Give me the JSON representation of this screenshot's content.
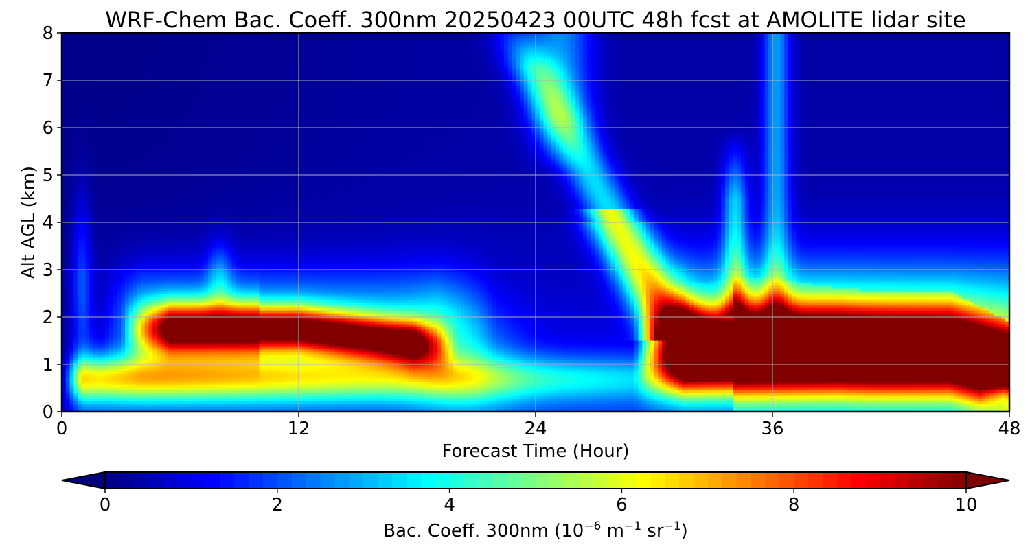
{
  "chart_data": {
    "type": "heatmap",
    "title": "WRF-Chem Bac. Coeff. 300nm  20250423 00UTC 48h fcst at AMOLITE lidar site",
    "xlabel": "Forecast Time (Hour)",
    "ylabel": "Alt AGL (km)",
    "xlim": [
      0,
      48
    ],
    "ylim": [
      0,
      8
    ],
    "xticks": [
      0,
      12,
      24,
      36,
      48
    ],
    "yticks": [
      0,
      1,
      2,
      3,
      4,
      5,
      6,
      7,
      8
    ],
    "grid": true,
    "x_values": [
      0,
      1,
      2,
      3,
      4,
      5,
      6,
      7,
      8,
      9,
      10,
      11,
      12,
      13,
      14,
      15,
      16,
      17,
      18,
      19,
      20,
      21,
      22,
      23,
      24,
      25,
      26,
      27,
      28,
      29,
      30,
      31,
      32,
      33,
      34,
      35,
      36,
      37,
      38,
      39,
      40,
      41,
      42,
      43,
      44,
      45,
      46,
      47,
      48
    ],
    "y_values": [
      0,
      0.25,
      0.5,
      0.75,
      1,
      1.25,
      1.5,
      1.75,
      2,
      2.25,
      2.5,
      2.75,
      3,
      3.5,
      4,
      4.5,
      5,
      6,
      7,
      8
    ],
    "z_description": "Backscatter coefficient at 300nm in units of 1e-6 m^-1 sr^-1; see layers for feature values used to build grid",
    "features": [
      {
        "name": "background_low",
        "value": 0.3
      },
      {
        "name": "boundary_layer_day1",
        "x_range": [
          4,
          19
        ],
        "y_center": 1.8,
        "y_halfwidth": 0.5,
        "peak": 9.2
      },
      {
        "name": "surface_layer",
        "x_range": [
          1,
          30
        ],
        "y_center": 0.6,
        "peak": 5.0
      },
      {
        "name": "elevated_plume",
        "x_start": 24,
        "x_end": 31,
        "y_start": 6.5,
        "y_end": 1.5,
        "peak": 5.5
      },
      {
        "name": "boundary_layer_day2",
        "x_range": [
          30,
          48
        ],
        "y_center": 1.2,
        "y_halfwidth": 1.1,
        "peak": 10.5
      },
      {
        "name": "vertical_streak_36",
        "x_center": 36,
        "y_range": [
          2,
          8
        ],
        "peak": 3.2
      },
      {
        "name": "vertical_streak_34",
        "x_center": 34,
        "y_range": [
          2,
          6
        ],
        "peak": 3.4
      }
    ],
    "colorbar": {
      "colormap": "jet",
      "vmin": 0,
      "vmax": 10,
      "ticks": [
        0,
        2,
        4,
        6,
        8,
        10
      ],
      "extend": "both",
      "label_main": "Bac. Coeff. 300nm  (10",
      "label_exp1": "−6",
      "label_mid": " m",
      "label_exp2": "−1",
      "label_mid2": " sr",
      "label_exp3": "−1",
      "label_end": ")"
    }
  }
}
